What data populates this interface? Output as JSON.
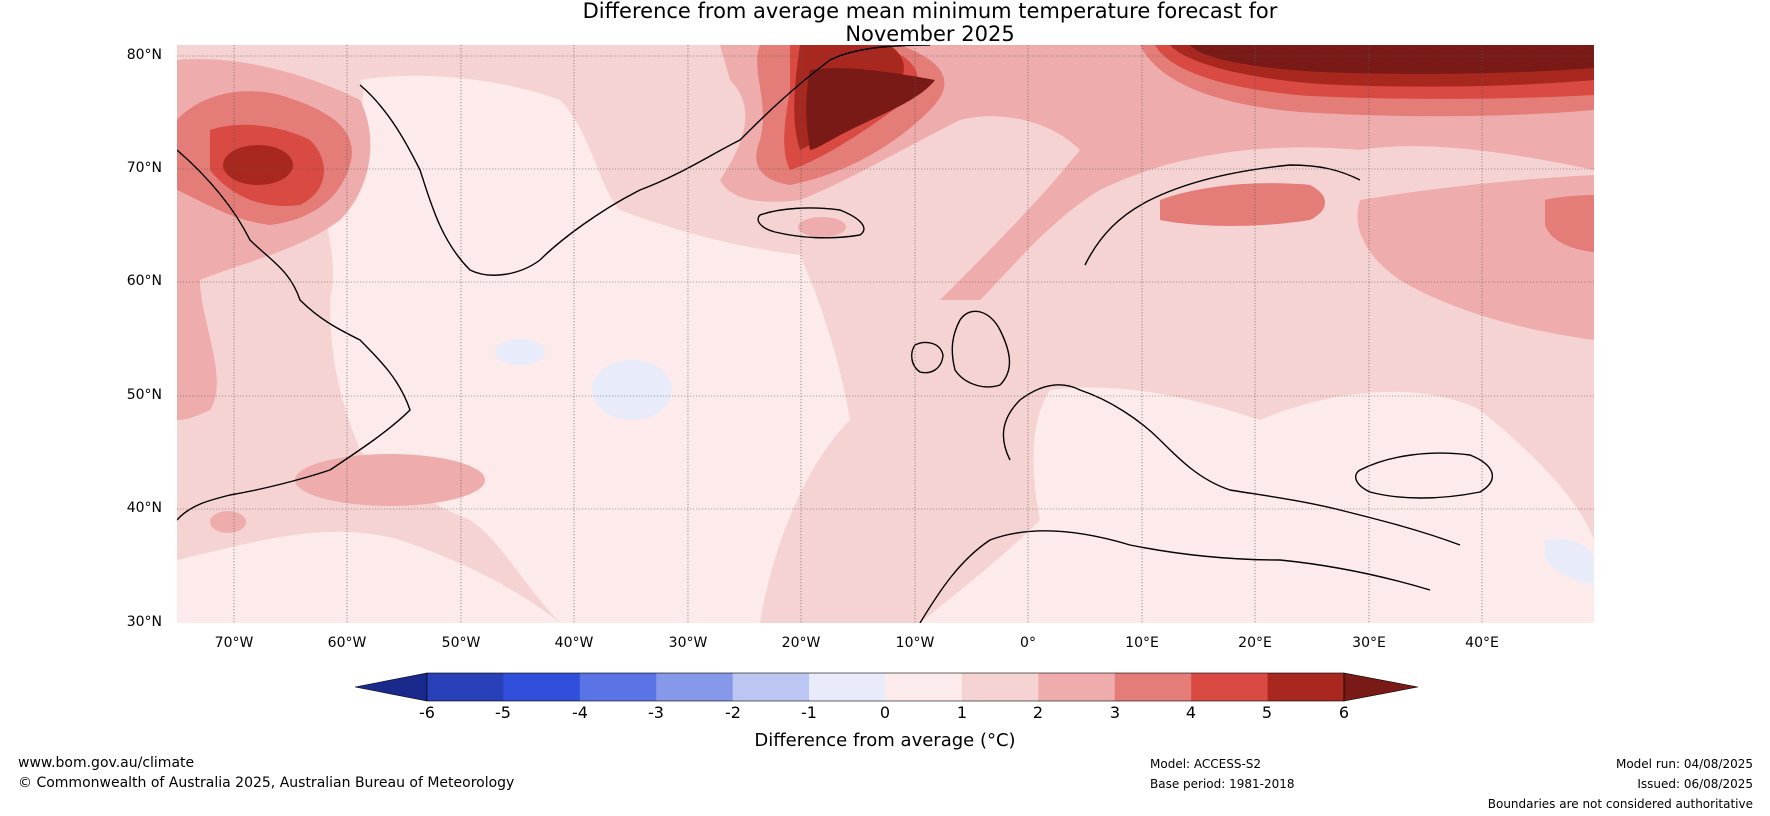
{
  "title": {
    "line1": "Difference from average mean minimum temperature forecast for",
    "line2": "November 2025"
  },
  "latitude_labels": [
    "80°N",
    "70°N",
    "60°N",
    "50°N",
    "40°N",
    "30°N"
  ],
  "longitude_labels": [
    "70°W",
    "60°W",
    "50°W",
    "40°W",
    "30°W",
    "20°W",
    "10°W",
    "0°",
    "10°E",
    "20°E",
    "30°E",
    "40°E"
  ],
  "colorbar": {
    "ticks": [
      "-6",
      "-5",
      "-4",
      "-3",
      "-2",
      "-1",
      "0",
      "1",
      "2",
      "3",
      "4",
      "5",
      "6"
    ],
    "label": "Difference from average (°C)",
    "colors": [
      "#1a2a8c",
      "#2840b8",
      "#3050dc",
      "#5a74e6",
      "#8598ea",
      "#bcc6f2",
      "#e8ecfa",
      "#fcebea",
      "#f5d3d2",
      "#eeadac",
      "#e47c78",
      "#d84a42",
      "#a82820",
      "#7a1a16"
    ]
  },
  "footer": {
    "website": "www.bom.gov.au/climate",
    "copyright": "© Commonwealth of Australia 2025, Australian Bureau of Meteorology",
    "model": "Model: ACCESS-S2",
    "base_period": "Base period: 1981-2018",
    "model_run": "Model run: 04/08/2025",
    "issued": "Issued: 06/08/2025",
    "disclaimer": "Boundaries are not considered authoritative"
  }
}
